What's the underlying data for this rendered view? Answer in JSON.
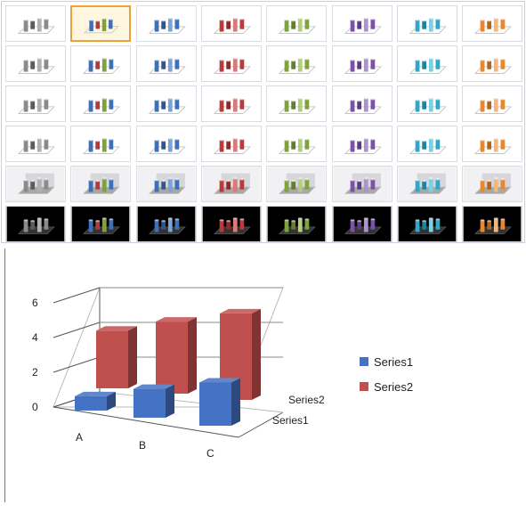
{
  "gallery": {
    "columns": 8,
    "rows": 6,
    "selected": {
      "row": 0,
      "col": 1
    },
    "palettes": [
      {
        "name": "gray",
        "a": "#8a8a8a",
        "b": "#5b5b5b",
        "c": "#b0b0b0"
      },
      {
        "name": "multi",
        "a": "#3f6fb5",
        "b": "#b23a3a",
        "c": "#7ea33a"
      },
      {
        "name": "blue",
        "a": "#3f6fb5",
        "b": "#2e5591",
        "c": "#7aa3d8"
      },
      {
        "name": "red",
        "a": "#b83a3a",
        "b": "#8e2a2a",
        "c": "#d77a7a"
      },
      {
        "name": "green",
        "a": "#7fa33c",
        "b": "#5f7f28",
        "c": "#b4cf7c"
      },
      {
        "name": "purple",
        "a": "#7a52a6",
        "b": "#5c3a84",
        "c": "#ad93cd"
      },
      {
        "name": "teal",
        "a": "#2fa8c8",
        "b": "#1f819c",
        "c": "#7fcfe3"
      },
      {
        "name": "orange",
        "a": "#e8872e",
        "b": "#b86418",
        "c": "#f4b77b"
      }
    ],
    "row_variants": [
      "flat-light",
      "flat-light",
      "flat-shaded",
      "flat-shaded",
      "gray-floor",
      "dark-background"
    ]
  },
  "chart_data": {
    "type": "bar",
    "categories": [
      "A",
      "B",
      "C"
    ],
    "series": [
      {
        "name": "Series1",
        "values": [
          1,
          2,
          3
        ],
        "color": "#4472c4"
      },
      {
        "name": "Series2",
        "values": [
          4,
          5,
          6
        ],
        "color": "#c0504d"
      }
    ],
    "depth_labels": [
      "Series2",
      "Series1"
    ],
    "ylim": [
      0,
      6
    ],
    "yticks": [
      "0",
      "2",
      "4",
      "6"
    ],
    "legend_position": "right",
    "grid": true
  }
}
